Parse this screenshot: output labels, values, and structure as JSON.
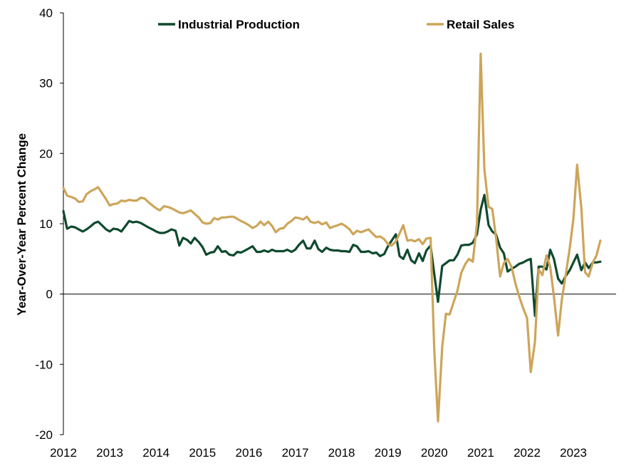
{
  "chart_data": {
    "type": "line",
    "title": "",
    "xlabel": "",
    "ylabel": "Year-Over-Year Percent Change",
    "ylim": [
      -20,
      40
    ],
    "xlim": [
      2012,
      2023.917
    ],
    "yticks": [
      "40",
      "30",
      "20",
      "10",
      "0",
      "-10",
      "-20"
    ],
    "xticks": [
      "2012",
      "2013",
      "2014",
      "2015",
      "2016",
      "2017",
      "2018",
      "2019",
      "2020",
      "2021",
      "2022",
      "2023"
    ],
    "grid": false,
    "legend_position": "top",
    "series": [
      {
        "name": "Industrial Production",
        "color": "#0f4a2e",
        "points": [
          [
            2012.0,
            11.8
          ],
          [
            2012.08,
            9.3
          ],
          [
            2012.17,
            9.6
          ],
          [
            2012.25,
            9.5
          ],
          [
            2012.33,
            9.2
          ],
          [
            2012.42,
            8.9
          ],
          [
            2012.5,
            9.2
          ],
          [
            2012.58,
            9.6
          ],
          [
            2012.67,
            10.1
          ],
          [
            2012.75,
            10.3
          ],
          [
            2012.83,
            9.8
          ],
          [
            2012.92,
            9.2
          ],
          [
            2013.0,
            8.9
          ],
          [
            2013.08,
            9.3
          ],
          [
            2013.17,
            9.2
          ],
          [
            2013.25,
            8.9
          ],
          [
            2013.33,
            9.6
          ],
          [
            2013.42,
            10.4
          ],
          [
            2013.5,
            10.2
          ],
          [
            2013.58,
            10.3
          ],
          [
            2013.67,
            10.1
          ],
          [
            2013.75,
            9.8
          ],
          [
            2013.83,
            9.5
          ],
          [
            2013.92,
            9.2
          ],
          [
            2014.0,
            8.9
          ],
          [
            2014.08,
            8.7
          ],
          [
            2014.17,
            8.7
          ],
          [
            2014.25,
            8.9
          ],
          [
            2014.33,
            9.2
          ],
          [
            2014.42,
            9.0
          ],
          [
            2014.5,
            6.9
          ],
          [
            2014.58,
            8.0
          ],
          [
            2014.67,
            7.7
          ],
          [
            2014.75,
            7.2
          ],
          [
            2014.83,
            8.0
          ],
          [
            2014.92,
            7.4
          ],
          [
            2015.0,
            6.7
          ],
          [
            2015.08,
            5.6
          ],
          [
            2015.17,
            5.9
          ],
          [
            2015.25,
            6.0
          ],
          [
            2015.33,
            6.8
          ],
          [
            2015.42,
            6.0
          ],
          [
            2015.5,
            6.1
          ],
          [
            2015.58,
            5.6
          ],
          [
            2015.67,
            5.5
          ],
          [
            2015.75,
            6.0
          ],
          [
            2015.83,
            5.9
          ],
          [
            2015.92,
            6.2
          ],
          [
            2016.0,
            6.5
          ],
          [
            2016.08,
            6.8
          ],
          [
            2016.17,
            6.0
          ],
          [
            2016.25,
            6.0
          ],
          [
            2016.33,
            6.2
          ],
          [
            2016.42,
            6.0
          ],
          [
            2016.5,
            6.3
          ],
          [
            2016.58,
            6.1
          ],
          [
            2016.67,
            6.1
          ],
          [
            2016.75,
            6.1
          ],
          [
            2016.83,
            6.3
          ],
          [
            2016.92,
            6.0
          ],
          [
            2017.0,
            6.3
          ],
          [
            2017.08,
            7.0
          ],
          [
            2017.17,
            7.6
          ],
          [
            2017.25,
            6.5
          ],
          [
            2017.33,
            6.5
          ],
          [
            2017.42,
            7.6
          ],
          [
            2017.5,
            6.4
          ],
          [
            2017.58,
            6.0
          ],
          [
            2017.67,
            6.6
          ],
          [
            2017.75,
            6.3
          ],
          [
            2017.83,
            6.2
          ],
          [
            2017.92,
            6.2
          ],
          [
            2018.0,
            6.1
          ],
          [
            2018.08,
            6.1
          ],
          [
            2018.17,
            6.0
          ],
          [
            2018.25,
            7.0
          ],
          [
            2018.33,
            6.8
          ],
          [
            2018.42,
            6.0
          ],
          [
            2018.5,
            6.0
          ],
          [
            2018.58,
            6.1
          ],
          [
            2018.67,
            5.8
          ],
          [
            2018.75,
            5.9
          ],
          [
            2018.83,
            5.4
          ],
          [
            2018.92,
            5.7
          ],
          [
            2019.0,
            6.8
          ],
          [
            2019.08,
            7.6
          ],
          [
            2019.17,
            8.5
          ],
          [
            2019.25,
            5.4
          ],
          [
            2019.33,
            5.0
          ],
          [
            2019.42,
            6.3
          ],
          [
            2019.5,
            4.8
          ],
          [
            2019.58,
            4.4
          ],
          [
            2019.67,
            5.8
          ],
          [
            2019.75,
            4.7
          ],
          [
            2019.83,
            6.2
          ],
          [
            2019.92,
            6.9
          ],
          [
            2020.0,
            2.8
          ],
          [
            2020.08,
            -1.1
          ],
          [
            2020.17,
            4.0
          ],
          [
            2020.25,
            4.4
          ],
          [
            2020.33,
            4.8
          ],
          [
            2020.42,
            4.8
          ],
          [
            2020.5,
            5.6
          ],
          [
            2020.58,
            6.9
          ],
          [
            2020.67,
            7.0
          ],
          [
            2020.75,
            7.0
          ],
          [
            2020.83,
            7.3
          ],
          [
            2020.92,
            8.5
          ],
          [
            2021.0,
            12.0
          ],
          [
            2021.08,
            14.1
          ],
          [
            2021.17,
            9.8
          ],
          [
            2021.25,
            8.9
          ],
          [
            2021.33,
            8.5
          ],
          [
            2021.42,
            6.6
          ],
          [
            2021.5,
            5.8
          ],
          [
            2021.58,
            3.2
          ],
          [
            2021.67,
            3.6
          ],
          [
            2021.75,
            3.9
          ],
          [
            2021.83,
            4.3
          ],
          [
            2021.92,
            4.5
          ],
          [
            2022.0,
            4.8
          ],
          [
            2022.08,
            5.0
          ],
          [
            2022.17,
            -3.1
          ],
          [
            2022.25,
            3.9
          ],
          [
            2022.33,
            3.9
          ],
          [
            2022.42,
            3.5
          ],
          [
            2022.5,
            6.3
          ],
          [
            2022.58,
            5.0
          ],
          [
            2022.67,
            2.2
          ],
          [
            2022.75,
            1.5
          ],
          [
            2022.83,
            2.5
          ],
          [
            2022.92,
            3.4
          ],
          [
            2023.0,
            4.5
          ],
          [
            2023.08,
            5.6
          ],
          [
            2023.17,
            3.4
          ],
          [
            2023.25,
            4.5
          ],
          [
            2023.33,
            3.7
          ],
          [
            2023.42,
            4.5
          ],
          [
            2023.5,
            4.5
          ],
          [
            2023.58,
            4.6
          ]
        ]
      },
      {
        "name": "Retail Sales",
        "color": "#cda55a",
        "points": [
          [
            2012.0,
            15.1
          ],
          [
            2012.08,
            14.0
          ],
          [
            2012.17,
            13.8
          ],
          [
            2012.25,
            13.6
          ],
          [
            2012.33,
            13.1
          ],
          [
            2012.42,
            13.2
          ],
          [
            2012.5,
            14.2
          ],
          [
            2012.58,
            14.6
          ],
          [
            2012.67,
            14.9
          ],
          [
            2012.75,
            15.2
          ],
          [
            2012.83,
            14.4
          ],
          [
            2012.92,
            13.5
          ],
          [
            2013.0,
            12.6
          ],
          [
            2013.08,
            12.8
          ],
          [
            2013.17,
            12.9
          ],
          [
            2013.25,
            13.3
          ],
          [
            2013.33,
            13.2
          ],
          [
            2013.42,
            13.4
          ],
          [
            2013.5,
            13.3
          ],
          [
            2013.58,
            13.3
          ],
          [
            2013.67,
            13.7
          ],
          [
            2013.75,
            13.6
          ],
          [
            2013.83,
            13.1
          ],
          [
            2013.92,
            12.6
          ],
          [
            2014.0,
            12.2
          ],
          [
            2014.08,
            11.9
          ],
          [
            2014.17,
            12.5
          ],
          [
            2014.25,
            12.4
          ],
          [
            2014.33,
            12.2
          ],
          [
            2014.42,
            11.9
          ],
          [
            2014.5,
            11.6
          ],
          [
            2014.58,
            11.5
          ],
          [
            2014.67,
            11.7
          ],
          [
            2014.75,
            11.9
          ],
          [
            2014.83,
            11.4
          ],
          [
            2014.92,
            10.9
          ],
          [
            2015.0,
            10.2
          ],
          [
            2015.08,
            10.0
          ],
          [
            2015.17,
            10.1
          ],
          [
            2015.25,
            10.8
          ],
          [
            2015.33,
            10.6
          ],
          [
            2015.42,
            10.9
          ],
          [
            2015.5,
            10.9
          ],
          [
            2015.58,
            11.0
          ],
          [
            2015.67,
            11.0
          ],
          [
            2015.75,
            10.7
          ],
          [
            2015.83,
            10.4
          ],
          [
            2015.92,
            10.1
          ],
          [
            2016.0,
            9.8
          ],
          [
            2016.08,
            9.4
          ],
          [
            2016.17,
            9.7
          ],
          [
            2016.25,
            10.3
          ],
          [
            2016.33,
            9.8
          ],
          [
            2016.42,
            10.3
          ],
          [
            2016.5,
            9.7
          ],
          [
            2016.58,
            8.8
          ],
          [
            2016.67,
            9.3
          ],
          [
            2016.75,
            9.4
          ],
          [
            2016.83,
            10.0
          ],
          [
            2016.92,
            10.4
          ],
          [
            2017.0,
            10.9
          ],
          [
            2017.08,
            10.8
          ],
          [
            2017.17,
            10.6
          ],
          [
            2017.25,
            11.0
          ],
          [
            2017.33,
            10.3
          ],
          [
            2017.42,
            10.1
          ],
          [
            2017.5,
            10.3
          ],
          [
            2017.58,
            9.9
          ],
          [
            2017.67,
            10.2
          ],
          [
            2017.75,
            9.4
          ],
          [
            2017.83,
            9.6
          ],
          [
            2017.92,
            9.8
          ],
          [
            2018.0,
            10.0
          ],
          [
            2018.08,
            9.7
          ],
          [
            2018.17,
            9.2
          ],
          [
            2018.25,
            8.5
          ],
          [
            2018.33,
            9.0
          ],
          [
            2018.42,
            8.8
          ],
          [
            2018.5,
            9.0
          ],
          [
            2018.58,
            9.2
          ],
          [
            2018.67,
            8.6
          ],
          [
            2018.75,
            8.1
          ],
          [
            2018.83,
            8.2
          ],
          [
            2018.92,
            7.8
          ],
          [
            2019.0,
            7.1
          ],
          [
            2019.08,
            6.9
          ],
          [
            2019.17,
            7.5
          ],
          [
            2019.25,
            8.6
          ],
          [
            2019.33,
            9.8
          ],
          [
            2019.42,
            7.6
          ],
          [
            2019.5,
            7.7
          ],
          [
            2019.58,
            7.5
          ],
          [
            2019.67,
            7.8
          ],
          [
            2019.75,
            7.1
          ],
          [
            2019.83,
            7.9
          ],
          [
            2019.92,
            8.0
          ],
          [
            2020.0,
            -8.1
          ],
          [
            2020.08,
            -18.1
          ],
          [
            2020.17,
            -7.5
          ],
          [
            2020.25,
            -2.8
          ],
          [
            2020.33,
            -2.9
          ],
          [
            2020.42,
            -1.1
          ],
          [
            2020.5,
            0.5
          ],
          [
            2020.58,
            3.0
          ],
          [
            2020.67,
            4.3
          ],
          [
            2020.75,
            5.0
          ],
          [
            2020.83,
            4.6
          ],
          [
            2020.92,
            10.0
          ],
          [
            2021.0,
            34.2
          ],
          [
            2021.08,
            17.7
          ],
          [
            2021.17,
            12.4
          ],
          [
            2021.25,
            12.1
          ],
          [
            2021.33,
            8.1
          ],
          [
            2021.42,
            2.5
          ],
          [
            2021.5,
            4.4
          ],
          [
            2021.58,
            5.0
          ],
          [
            2021.67,
            3.8
          ],
          [
            2021.75,
            1.5
          ],
          [
            2021.83,
            -0.3
          ],
          [
            2021.92,
            -2.1
          ],
          [
            2022.0,
            -3.4
          ],
          [
            2022.08,
            -11.1
          ],
          [
            2022.17,
            -6.8
          ],
          [
            2022.25,
            3.5
          ],
          [
            2022.33,
            2.7
          ],
          [
            2022.42,
            5.5
          ],
          [
            2022.5,
            3.9
          ],
          [
            2022.58,
            -0.4
          ],
          [
            2022.67,
            -5.9
          ],
          [
            2022.75,
            -0.8
          ],
          [
            2022.83,
            2.5
          ],
          [
            2022.92,
            6.5
          ],
          [
            2023.0,
            10.7
          ],
          [
            2023.08,
            18.4
          ],
          [
            2023.17,
            12.3
          ],
          [
            2023.25,
            3.1
          ],
          [
            2023.33,
            2.5
          ],
          [
            2023.42,
            4.5
          ],
          [
            2023.5,
            5.5
          ],
          [
            2023.58,
            7.6
          ]
        ]
      }
    ]
  }
}
